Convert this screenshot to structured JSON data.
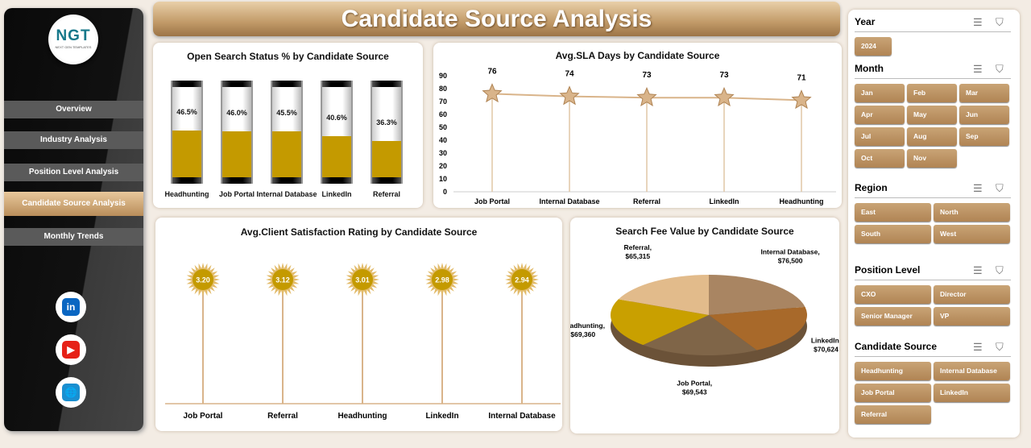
{
  "title": "Candidate Source Analysis",
  "logo": {
    "text": "NGT",
    "tagline": "NEXT GEN TEMPLATES"
  },
  "nav": [
    {
      "label": "Overview"
    },
    {
      "label": "Industry Analysis"
    },
    {
      "label": "Position Level Analysis"
    },
    {
      "label": "Candidate Source Analysis",
      "active": true
    },
    {
      "label": "Monthly Trends"
    }
  ],
  "social": [
    {
      "icon": "linkedin-icon",
      "glyph": "in",
      "color": "#0a66c2"
    },
    {
      "icon": "youtube-icon",
      "glyph": "▶",
      "color": "#e62117"
    },
    {
      "icon": "globe-icon",
      "glyph": "🌐",
      "color": "#1a8fd0"
    }
  ],
  "colors": {
    "accent": "#b08454",
    "fill": "#c49a00"
  },
  "chart_data": [
    {
      "type": "bar",
      "title": "Open Search Status % by Candidate Source",
      "categories": [
        "Headhunting",
        "Job Portal",
        "Internal Database",
        "LinkedIn",
        "Referral"
      ],
      "values": [
        46.5,
        46.0,
        45.5,
        40.6,
        36.3
      ],
      "labels": [
        "46.5%",
        "46.0%",
        "45.5%",
        "40.6%",
        "36.3%"
      ],
      "ylim": [
        0,
        100
      ]
    },
    {
      "type": "line",
      "title": "Avg.SLA Days by Candidate Source",
      "categories": [
        "Job Portal",
        "Internal Database",
        "Referral",
        "LinkedIn",
        "Headhunting"
      ],
      "values": [
        76,
        74,
        73,
        73,
        71
      ],
      "ylim": [
        0,
        90
      ],
      "yticks": [
        0,
        10,
        20,
        30,
        40,
        50,
        60,
        70,
        80,
        90
      ],
      "grid": false
    },
    {
      "type": "bar",
      "title": "Avg.Client Satisfaction Rating by Candidate Source",
      "categories": [
        "Job Portal",
        "Referral",
        "Headhunting",
        "LinkedIn",
        "Internal Database"
      ],
      "values": [
        3.2,
        3.12,
        3.01,
        2.98,
        2.94
      ],
      "labels": [
        "3.20",
        "3.12",
        "3.01",
        "2.98",
        "2.94"
      ]
    },
    {
      "type": "pie",
      "title": "Search Fee Value by Candidate Source",
      "categories": [
        "Internal Database",
        "LinkedIn",
        "Job Portal",
        "Headhunting",
        "Referral"
      ],
      "values": [
        76500,
        70624,
        69543,
        69360,
        65315
      ],
      "labels": [
        "Internal Database, $76,500",
        "LinkedIn, $70,624",
        "Job Portal, $69,543",
        "Headhunting, $69,360",
        "Referral, $65,315"
      ],
      "colors": [
        "#a98562",
        "#a8692a",
        "#7f6548",
        "#c9a000",
        "#e2bb8b"
      ]
    }
  ],
  "slicers": [
    {
      "title": "Year",
      "items": [
        "2024"
      ]
    },
    {
      "title": "Month",
      "items": [
        "Jan",
        "Feb",
        "Mar",
        "Apr",
        "May",
        "Jun",
        "Jul",
        "Aug",
        "Sep",
        "Oct",
        "Nov"
      ]
    },
    {
      "title": "Region",
      "items": [
        "East",
        "North",
        "South",
        "West"
      ]
    },
    {
      "title": "Position Level",
      "items": [
        "CXO",
        "Director",
        "Senior Manager",
        "VP"
      ]
    },
    {
      "title": "Candidate Source",
      "items": [
        "Headhunting",
        "Internal Database",
        "Job Portal",
        "LinkedIn",
        "Referral"
      ]
    }
  ]
}
